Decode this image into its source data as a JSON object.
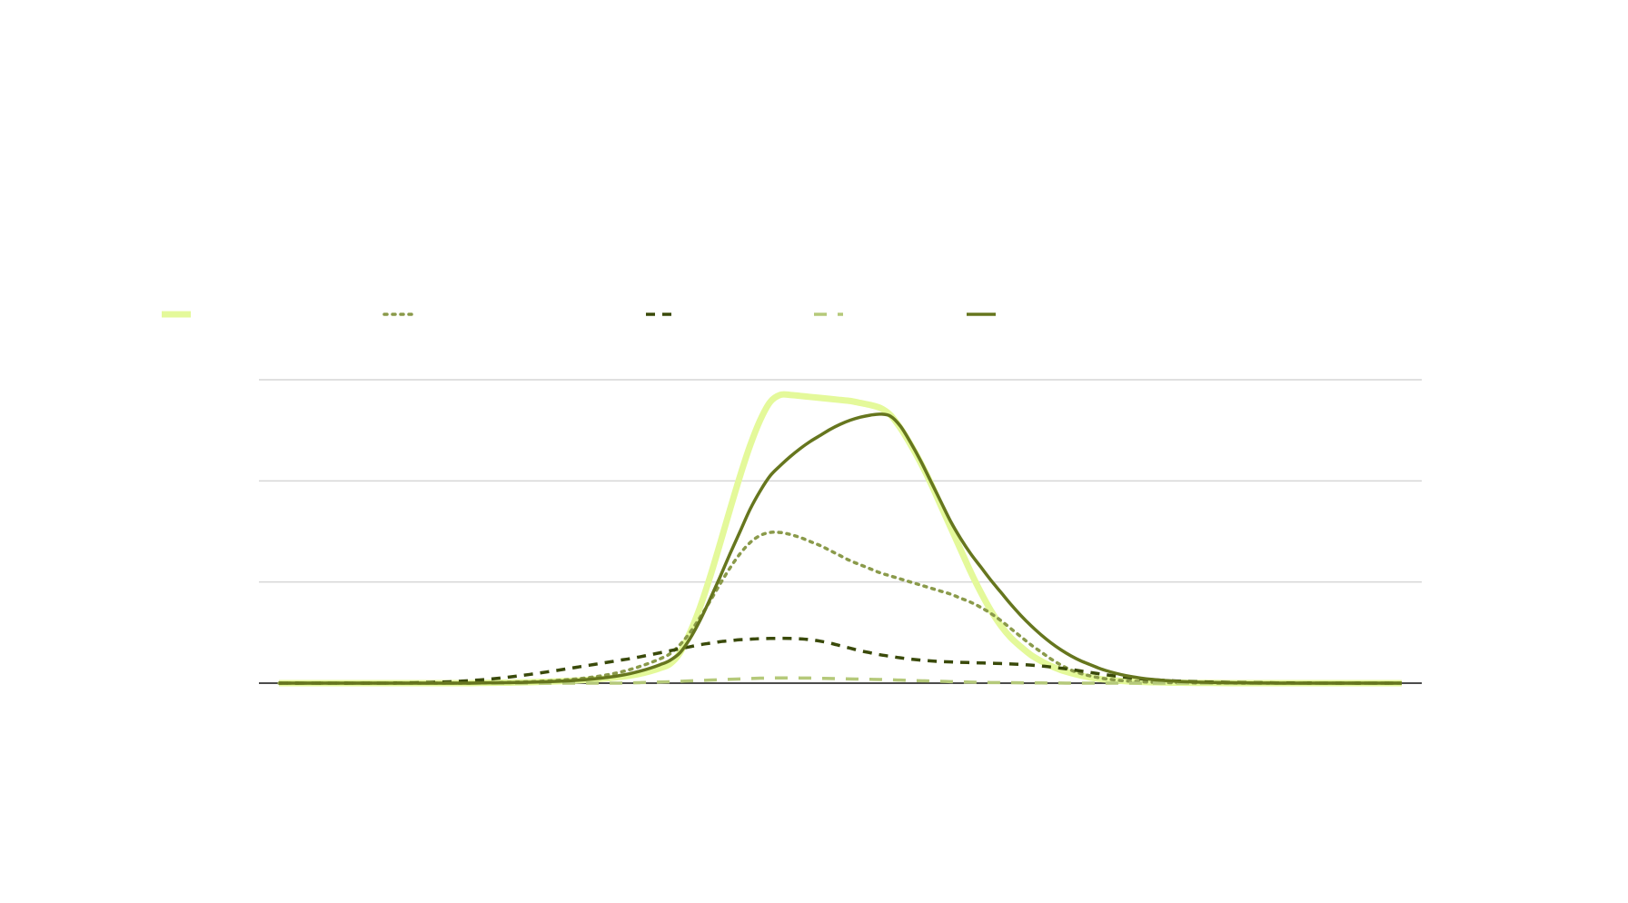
{
  "chart_data": {
    "type": "line",
    "title": "",
    "xlabel": "",
    "ylabel": "",
    "x": [
      0,
      1,
      2,
      3,
      4,
      5,
      6,
      7,
      8,
      9,
      10,
      11,
      12,
      13,
      14,
      15,
      16,
      17,
      18,
      19,
      20,
      21,
      22,
      23,
      24,
      25,
      26,
      27,
      28,
      29,
      30,
      31,
      32,
      33,
      34,
      35,
      36,
      37,
      38,
      39,
      40,
      41,
      42,
      43,
      44,
      45,
      46,
      47,
      48,
      49,
      50,
      51,
      52,
      53,
      54,
      55,
      56,
      57,
      58,
      59,
      60,
      61,
      62,
      63,
      64,
      65,
      66,
      67,
      68,
      69,
      70,
      71,
      72,
      73,
      74,
      75,
      76,
      77,
      78,
      79,
      80,
      81,
      82,
      83,
      84,
      85,
      86,
      87,
      88,
      89,
      90,
      91,
      92,
      93,
      94,
      95,
      96,
      97,
      98,
      99,
      100,
      101,
      102,
      103,
      104,
      105,
      106,
      107,
      108,
      109,
      110,
      111,
      112
    ],
    "xlim": [
      -2,
      114
    ],
    "ylim": [
      0,
      3
    ],
    "gridlines_y": [
      1,
      2,
      3
    ],
    "grid": true,
    "legend_position": "top-left",
    "series": [
      {
        "color": "#e4f99a",
        "dash": "solid",
        "width": 7,
        "values": [
          0,
          0,
          0,
          0,
          0,
          0,
          0,
          0,
          0,
          0,
          0,
          0,
          0,
          0,
          0,
          0,
          0,
          0,
          0,
          0,
          0.002,
          0.003,
          0.004,
          0.005,
          0.007,
          0.009,
          0.012,
          0.015,
          0.019,
          0.023,
          0.028,
          0.034,
          0.041,
          0.05,
          0.061,
          0.075,
          0.093,
          0.117,
          0.148,
          0.19,
          0.3,
          0.5,
          0.75,
          1.05,
          1.38,
          1.72,
          2.05,
          2.35,
          2.6,
          2.78,
          2.85,
          2.85,
          2.84,
          2.83,
          2.82,
          2.81,
          2.8,
          2.79,
          2.77,
          2.75,
          2.72,
          2.65,
          2.52,
          2.36,
          2.18,
          1.98,
          1.76,
          1.54,
          1.32,
          1.1,
          0.9,
          0.72,
          0.57,
          0.45,
          0.36,
          0.28,
          0.22,
          0.17,
          0.13,
          0.1,
          0.075,
          0.055,
          0.04,
          0.03,
          0.022,
          0.016,
          0.012,
          0.009,
          0.007,
          0.005,
          0.004,
          0.003,
          0.002,
          0.002,
          0.001,
          0,
          0,
          0,
          0,
          0,
          0,
          0,
          0,
          0,
          0,
          0,
          0,
          0,
          0,
          0,
          0,
          0,
          0
        ]
      },
      {
        "color": "#8a9a4a",
        "dash": "dotted",
        "width": 3.5,
        "values": [
          0,
          0,
          0,
          0,
          0,
          0,
          0,
          0,
          0,
          0,
          0,
          0,
          0,
          0,
          0,
          0,
          0,
          0,
          0,
          0,
          0.003,
          0.004,
          0.006,
          0.008,
          0.011,
          0.014,
          0.018,
          0.023,
          0.029,
          0.036,
          0.045,
          0.056,
          0.07,
          0.087,
          0.108,
          0.134,
          0.165,
          0.2,
          0.24,
          0.29,
          0.38,
          0.5,
          0.65,
          0.81,
          0.98,
          1.14,
          1.28,
          1.39,
          1.46,
          1.49,
          1.49,
          1.47,
          1.44,
          1.4,
          1.36,
          1.31,
          1.26,
          1.21,
          1.17,
          1.13,
          1.09,
          1.06,
          1.03,
          1.0,
          0.97,
          0.94,
          0.91,
          0.88,
          0.84,
          0.8,
          0.75,
          0.69,
          0.62,
          0.54,
          0.46,
          0.38,
          0.31,
          0.24,
          0.18,
          0.13,
          0.095,
          0.07,
          0.05,
          0.036,
          0.026,
          0.019,
          0.014,
          0.01,
          0.007,
          0.005,
          0.004,
          0.003,
          0.002,
          0.001,
          0,
          0,
          0,
          0,
          0,
          0,
          0,
          0,
          0,
          0,
          0,
          0,
          0,
          0,
          0,
          0,
          0,
          0,
          0
        ]
      },
      {
        "color": "#3a4a0a",
        "dash": "dashed",
        "width": 3.5,
        "values": [
          0,
          0,
          0,
          0,
          0,
          0,
          0,
          0,
          0,
          0,
          0,
          0,
          0.002,
          0.003,
          0.005,
          0.007,
          0.01,
          0.014,
          0.019,
          0.025,
          0.032,
          0.04,
          0.05,
          0.061,
          0.073,
          0.086,
          0.1,
          0.115,
          0.13,
          0.146,
          0.162,
          0.178,
          0.194,
          0.21,
          0.226,
          0.242,
          0.26,
          0.28,
          0.3,
          0.32,
          0.34,
          0.36,
          0.38,
          0.395,
          0.41,
          0.42,
          0.43,
          0.435,
          0.44,
          0.442,
          0.443,
          0.442,
          0.438,
          0.43,
          0.415,
          0.395,
          0.37,
          0.345,
          0.32,
          0.3,
          0.28,
          0.265,
          0.25,
          0.238,
          0.228,
          0.22,
          0.214,
          0.21,
          0.206,
          0.203,
          0.2,
          0.197,
          0.194,
          0.19,
          0.185,
          0.178,
          0.17,
          0.16,
          0.148,
          0.135,
          0.12,
          0.105,
          0.09,
          0.076,
          0.063,
          0.052,
          0.043,
          0.035,
          0.029,
          0.024,
          0.02,
          0.016,
          0.013,
          0.011,
          0.009,
          0.007,
          0.006,
          0.005,
          0.004,
          0.003,
          0.002,
          0.002,
          0.001,
          0.001,
          0,
          0,
          0,
          0,
          0,
          0,
          0,
          0,
          0
        ]
      },
      {
        "color": "#b5c97a",
        "dash": "dashed-long",
        "width": 3.5,
        "values": [
          0,
          0,
          0,
          0,
          0,
          0,
          0,
          0,
          0,
          0,
          0,
          0,
          0,
          0,
          0,
          0,
          0,
          0,
          0,
          0,
          0,
          0,
          0,
          0,
          0,
          0,
          0,
          0,
          0,
          0,
          0,
          0,
          0,
          0,
          0,
          0.003,
          0.005,
          0.008,
          0.011,
          0.014,
          0.018,
          0.022,
          0.026,
          0.03,
          0.034,
          0.038,
          0.042,
          0.046,
          0.049,
          0.051,
          0.052,
          0.052,
          0.051,
          0.05,
          0.048,
          0.046,
          0.044,
          0.042,
          0.04,
          0.038,
          0.036,
          0.033,
          0.03,
          0.027,
          0.024,
          0.021,
          0.018,
          0.015,
          0.012,
          0.01,
          0.008,
          0.006,
          0.005,
          0.004,
          0.003,
          0.002,
          0.002,
          0.001,
          0.001,
          0,
          0,
          0,
          0,
          0,
          0,
          0,
          0,
          0,
          0,
          0,
          0,
          0,
          0,
          0,
          0,
          0,
          0,
          0,
          0,
          0,
          0,
          0,
          0,
          0,
          0,
          0,
          0,
          0,
          0,
          0,
          0,
          0,
          0
        ]
      },
      {
        "color": "#66761e",
        "dash": "solid",
        "width": 3.5,
        "values": [
          0,
          0,
          0,
          0,
          0,
          0,
          0,
          0,
          0,
          0,
          0,
          0,
          0,
          0,
          0,
          0,
          0,
          0,
          0,
          0,
          0.002,
          0.003,
          0.004,
          0.005,
          0.007,
          0.009,
          0.012,
          0.015,
          0.019,
          0.024,
          0.03,
          0.038,
          0.048,
          0.06,
          0.075,
          0.094,
          0.118,
          0.147,
          0.182,
          0.225,
          0.3,
          0.44,
          0.62,
          0.83,
          1.05,
          1.28,
          1.5,
          1.72,
          1.9,
          2.05,
          2.15,
          2.24,
          2.32,
          2.39,
          2.45,
          2.51,
          2.56,
          2.6,
          2.63,
          2.65,
          2.66,
          2.64,
          2.54,
          2.38,
          2.2,
          2.0,
          1.8,
          1.6,
          1.43,
          1.28,
          1.15,
          1.02,
          0.9,
          0.78,
          0.67,
          0.57,
          0.48,
          0.4,
          0.33,
          0.27,
          0.22,
          0.18,
          0.14,
          0.11,
          0.085,
          0.065,
          0.05,
          0.038,
          0.029,
          0.022,
          0.016,
          0.012,
          0.009,
          0.007,
          0.005,
          0.004,
          0.003,
          0.002,
          0.001,
          0.001,
          0,
          0,
          0,
          0,
          0,
          0,
          0,
          0,
          0,
          0,
          0,
          0,
          0
        ]
      }
    ]
  }
}
